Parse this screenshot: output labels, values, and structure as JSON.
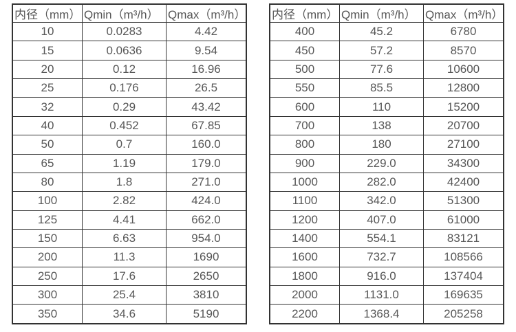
{
  "colors": {
    "background": "#ffffff",
    "table_border": "#323232",
    "text": "#575757"
  },
  "chart_data": [
    {
      "type": "table",
      "title": "",
      "columns": [
        "内径（mm）",
        "Qmin（m³/h）",
        "Qmax（m³/h）"
      ],
      "rows": [
        [
          "10",
          "0.0283",
          "4.42"
        ],
        [
          "15",
          "0.0636",
          "9.54"
        ],
        [
          "20",
          "0.12",
          "16.96"
        ],
        [
          "25",
          "0.176",
          "26.5"
        ],
        [
          "32",
          "0.29",
          "43.42"
        ],
        [
          "40",
          "0.452",
          "67.85"
        ],
        [
          "50",
          "0.7",
          "160.0"
        ],
        [
          "65",
          "1.19",
          "179.0"
        ],
        [
          "80",
          "1.8",
          "271.0"
        ],
        [
          "100",
          "2.82",
          "424.0"
        ],
        [
          "125",
          "4.41",
          "662.0"
        ],
        [
          "150",
          "6.63",
          "954.0"
        ],
        [
          "200",
          "11.3",
          "1690"
        ],
        [
          "250",
          "17.6",
          "2650"
        ],
        [
          "300",
          "25.4",
          "3810"
        ],
        [
          "350",
          "34.6",
          "5190"
        ]
      ]
    },
    {
      "type": "table",
      "title": "",
      "columns": [
        "内径（mm）",
        "Qmin（m³/h）",
        "Qmax（m³/h）"
      ],
      "rows": [
        [
          "400",
          "45.2",
          "6780"
        ],
        [
          "450",
          "57.2",
          "8570"
        ],
        [
          "500",
          "77.6",
          "10600"
        ],
        [
          "550",
          "85.5",
          "12800"
        ],
        [
          "600",
          "110",
          "15200"
        ],
        [
          "700",
          "138",
          "20700"
        ],
        [
          "800",
          "180",
          "27100"
        ],
        [
          "900",
          "229.0",
          "34300"
        ],
        [
          "1000",
          "282.0",
          "42400"
        ],
        [
          "1100",
          "342.0",
          "51300"
        ],
        [
          "1200",
          "407.0",
          "61000"
        ],
        [
          "1400",
          "554.1",
          "83121"
        ],
        [
          "1600",
          "732.7",
          "108566"
        ],
        [
          "1800",
          "916.0",
          "137404"
        ],
        [
          "2000",
          "1131.0",
          "169635"
        ],
        [
          "2200",
          "1368.4",
          "205258"
        ]
      ]
    }
  ]
}
